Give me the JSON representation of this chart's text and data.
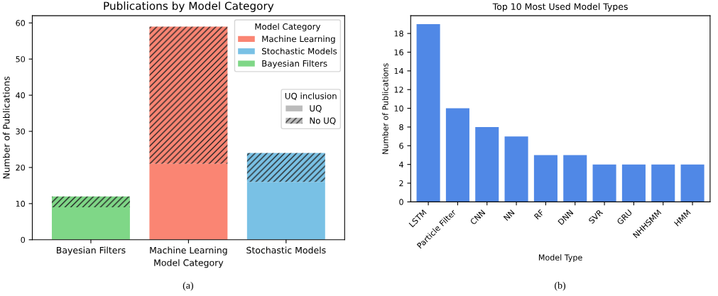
{
  "chart_data": [
    {
      "type": "bar",
      "title": "Publications by Model Category",
      "xlabel": "Model Category",
      "ylabel": "Number of Publications",
      "categories": [
        "Bayesian Filters",
        "Machine Learning",
        "Stochastic Models"
      ],
      "stacked": true,
      "ylim": [
        0,
        62
      ],
      "yticks": [
        0,
        10,
        20,
        30,
        40,
        50,
        60
      ],
      "legend": "top right",
      "legend_title": "Model Category",
      "annotations": [
        "UQ inclusion",
        "UQ",
        "No UQ",
        "(a)"
      ],
      "series": [
        {
          "name": "Machine Learning",
          "color": "#fa8573",
          "values": [
            null,
            21,
            null
          ]
        },
        {
          "name": "Stochastic Models",
          "color": "#79c1e5",
          "values": [
            null,
            null,
            16
          ]
        },
        {
          "name": "Bayesian Filters",
          "color": "#7fd787",
          "values": [
            9,
            null,
            null
          ]
        },
        {
          "color": "#fa8573",
          "values": [
            null,
            38,
            null
          ]
        },
        {
          "color": "#79c1e5",
          "values": [
            null,
            null,
            8
          ]
        },
        {
          "color": "#7fd787",
          "values": [
            3,
            null,
            null
          ]
        }
      ]
    },
    {
      "type": "bar",
      "title": "Top 10 Most Used Model Types",
      "xlabel": "Model Type",
      "ylabel": "Number of Publications",
      "categories": [
        "LSTM",
        "Particle Filter",
        "CNN",
        "NN",
        "RF",
        "DNN",
        "SVR",
        "GRU",
        "NHHSMM",
        "HMM"
      ],
      "ylim": [
        0,
        19.9
      ],
      "yticks": [
        0,
        2,
        4,
        6,
        8,
        10,
        12,
        14,
        16,
        18
      ],
      "annotations": [
        "(b)"
      ],
      "series": [
        {
          "color": "#5088e6",
          "values": [
            19,
            10,
            8,
            7,
            5,
            5,
            4,
            4,
            4,
            4
          ]
        }
      ]
    }
  ]
}
